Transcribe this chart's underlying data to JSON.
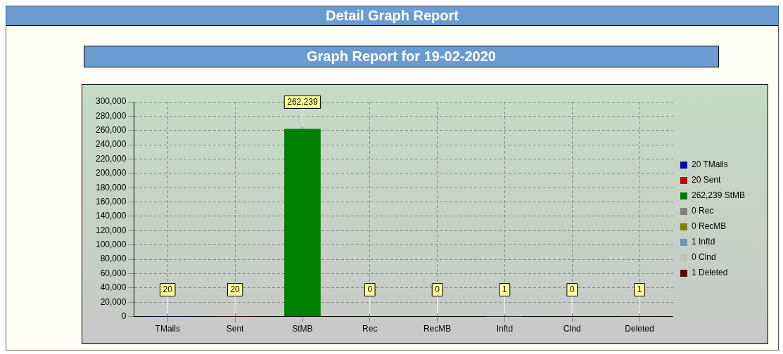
{
  "chart_data": {
    "type": "bar",
    "title": "Detail Graph Report",
    "subtitle": "Graph Report for 19-02-2020",
    "categories": [
      "TMails",
      "Sent",
      "StMB",
      "Rec",
      "RecMB",
      "Inftd",
      "Clnd",
      "Deleted"
    ],
    "series": [
      {
        "name": "20 TMails",
        "color": "#0000c0",
        "values": [
          20,
          null,
          null,
          null,
          null,
          null,
          null,
          null
        ],
        "value_labels": [
          "20",
          null,
          null,
          null,
          null,
          null,
          null,
          null
        ]
      },
      {
        "name": "20 Sent",
        "color": "#c00000",
        "values": [
          null,
          20,
          null,
          null,
          null,
          null,
          null,
          null
        ],
        "value_labels": [
          null,
          "20",
          null,
          null,
          null,
          null,
          null,
          null
        ]
      },
      {
        "name": "262,239 StMB",
        "color": "#008000",
        "values": [
          null,
          null,
          262239,
          null,
          null,
          null,
          null,
          null
        ],
        "value_labels": [
          null,
          null,
          "262,239",
          null,
          null,
          null,
          null,
          null
        ]
      },
      {
        "name": "0 Rec",
        "color": "#808080",
        "values": [
          null,
          null,
          null,
          0,
          null,
          null,
          null,
          null
        ],
        "value_labels": [
          null,
          null,
          null,
          "0",
          null,
          null,
          null,
          null
        ]
      },
      {
        "name": "0 RecMB",
        "color": "#808000",
        "values": [
          null,
          null,
          null,
          null,
          0,
          null,
          null,
          null
        ],
        "value_labels": [
          null,
          null,
          null,
          null,
          "0",
          null,
          null,
          null
        ]
      },
      {
        "name": "1 Inftd",
        "color": "#6a94c4",
        "values": [
          null,
          null,
          null,
          null,
          null,
          1,
          null,
          null
        ],
        "value_labels": [
          null,
          null,
          null,
          null,
          null,
          "1",
          null,
          null
        ]
      },
      {
        "name": "0 Clnd",
        "color": "#c8c0b0",
        "values": [
          null,
          null,
          null,
          null,
          null,
          null,
          0,
          null
        ],
        "value_labels": [
          null,
          null,
          null,
          null,
          null,
          null,
          "0",
          null
        ]
      },
      {
        "name": "1 Deleted",
        "color": "#600000",
        "values": [
          null,
          null,
          null,
          null,
          null,
          null,
          null,
          1
        ],
        "value_labels": [
          null,
          null,
          null,
          null,
          null,
          null,
          null,
          "1"
        ]
      }
    ],
    "ylim": [
      0,
      300000
    ],
    "yticks": [
      0,
      {
        "value": 20000,
        "label": "20,000"
      },
      {
        "value": 40000,
        "label": "40,000"
      },
      {
        "value": 60000,
        "label": "60,000"
      },
      {
        "value": 80000,
        "label": "80,000"
      },
      {
        "value": 100000,
        "label": "100,000"
      },
      {
        "value": 120000,
        "label": "120,000"
      },
      {
        "value": 140000,
        "label": "140,000"
      },
      {
        "value": 160000,
        "label": "160,000"
      },
      {
        "value": 180000,
        "label": "180,000"
      },
      {
        "value": 200000,
        "label": "200,000"
      },
      {
        "value": 220000,
        "label": "220,000"
      },
      {
        "value": 240000,
        "label": "240,000"
      },
      {
        "value": 260000,
        "label": "260,000"
      },
      {
        "value": 280000,
        "label": "280,000"
      },
      {
        "value": 300000,
        "label": "300,000"
      }
    ],
    "grid": true,
    "legend": "right"
  }
}
